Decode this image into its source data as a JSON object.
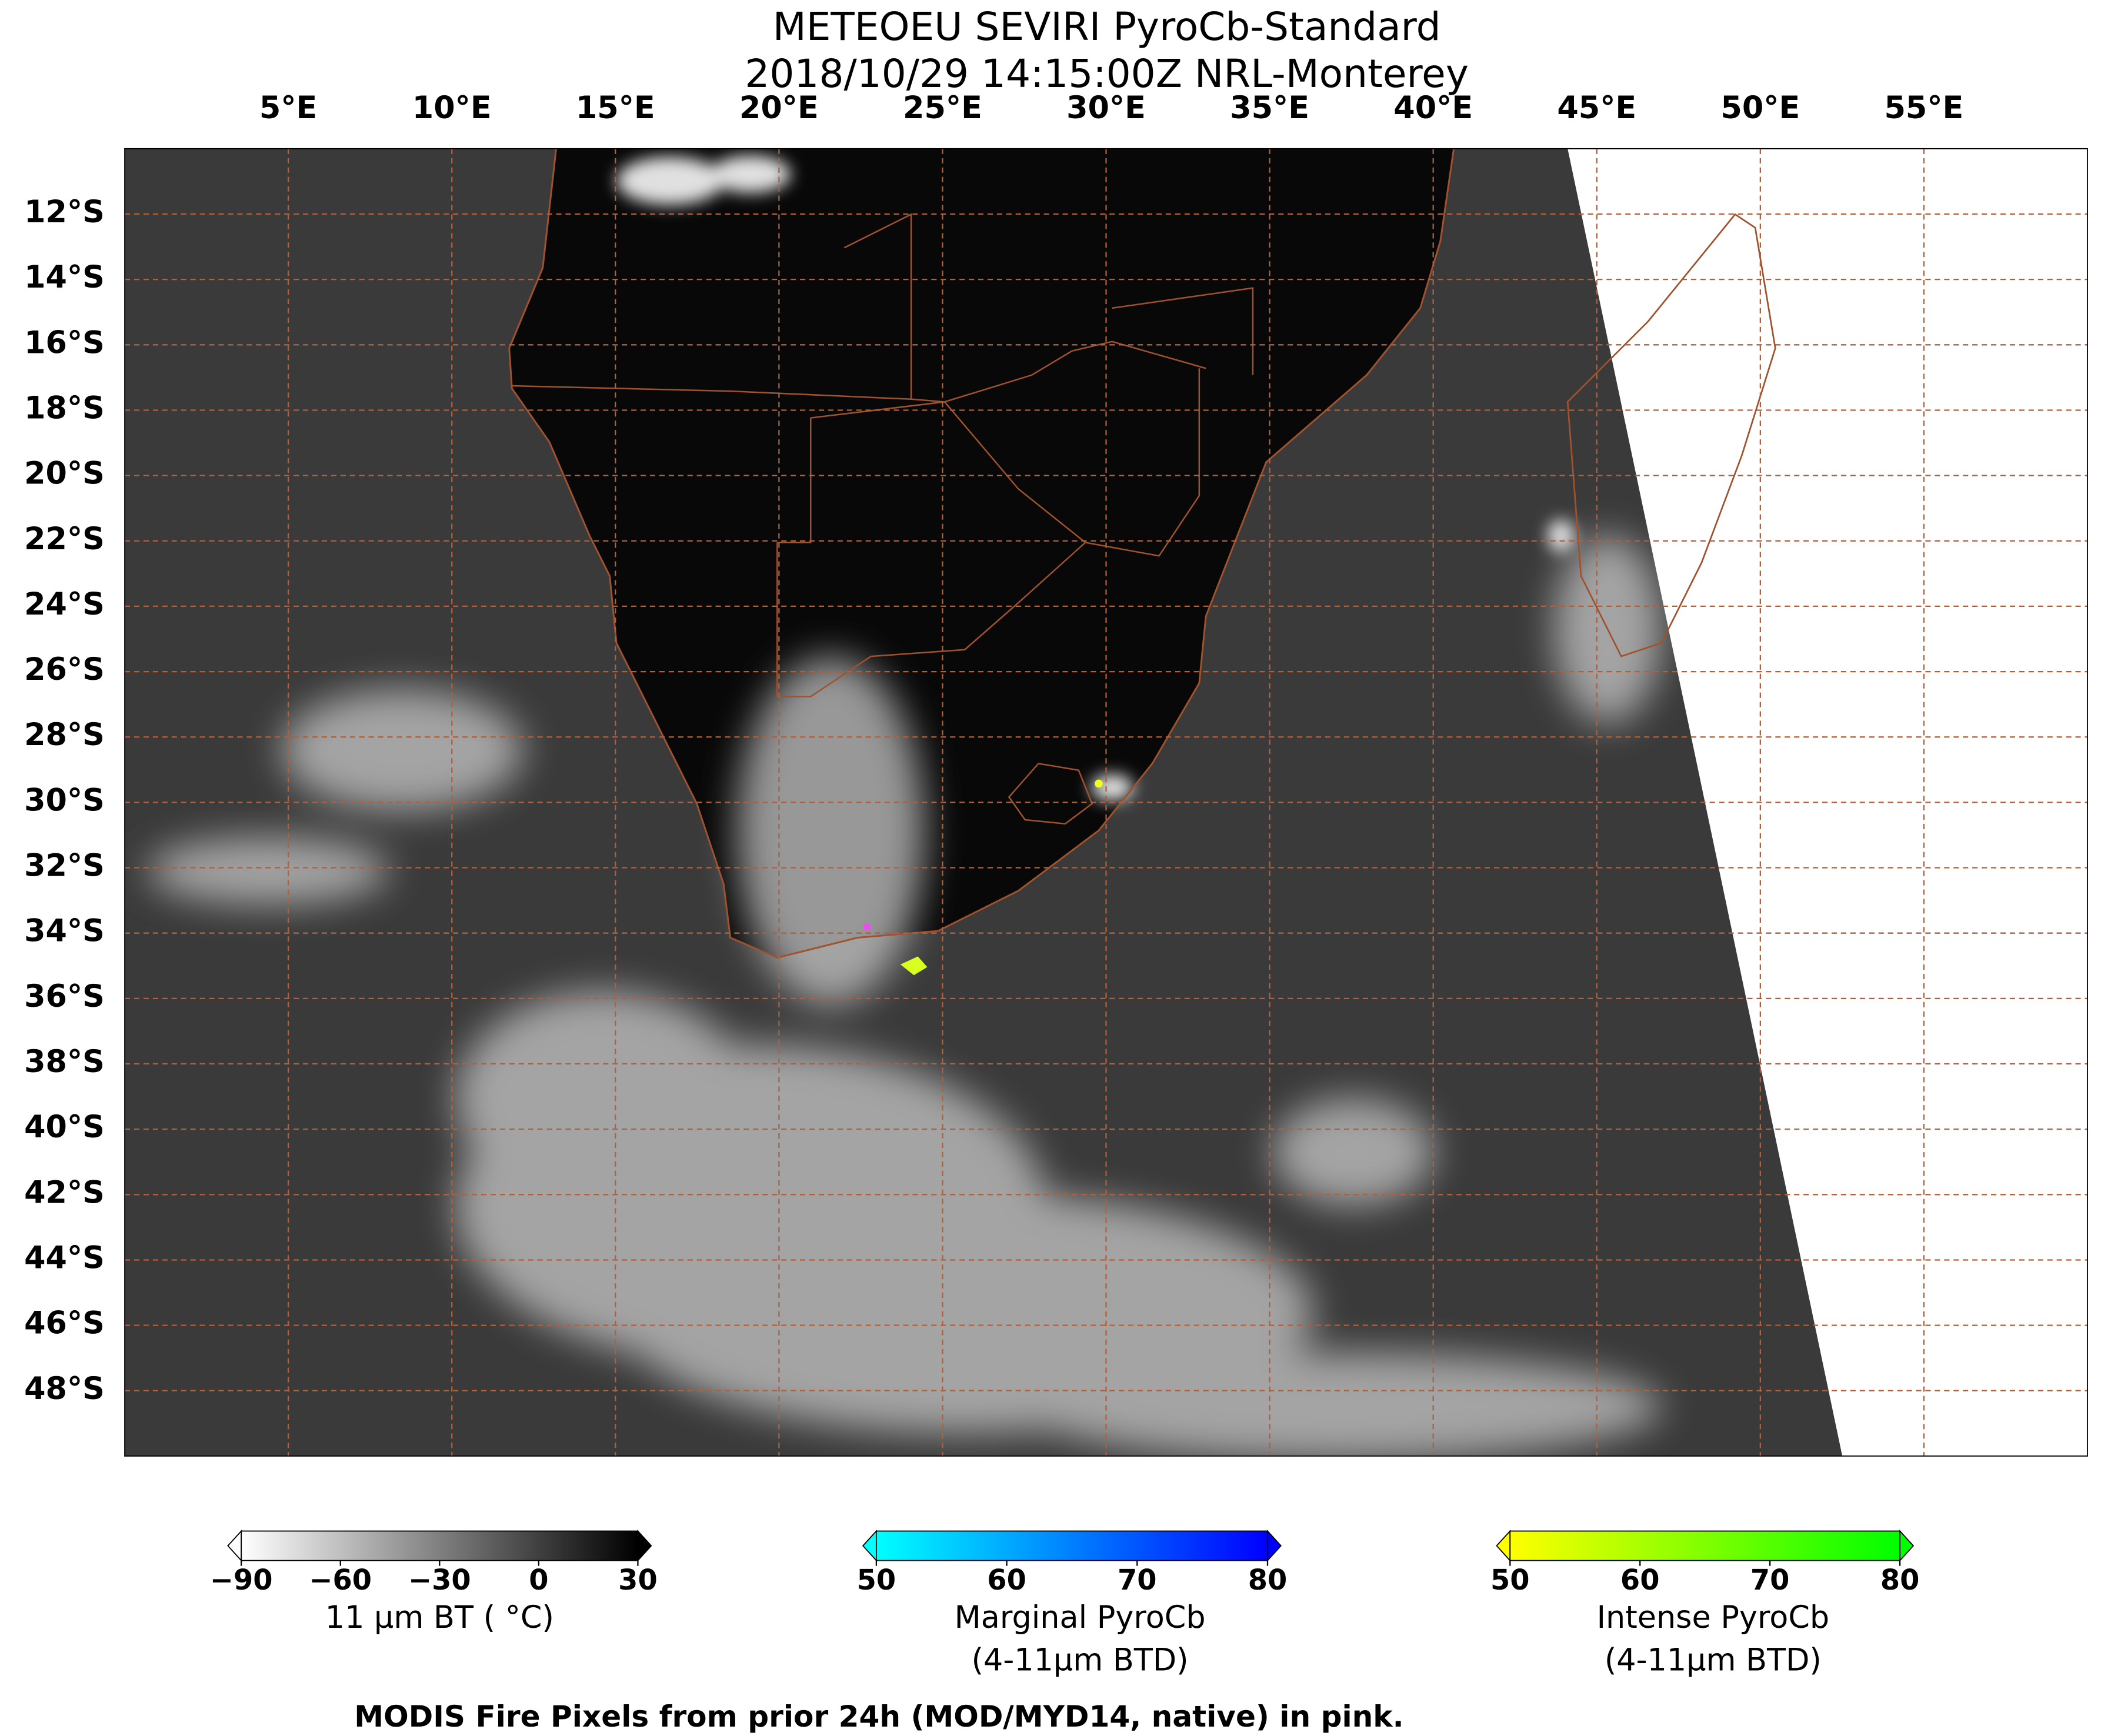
{
  "title": [
    "METEOEU SEVIRI PyroCb-Standard",
    "2018/10/29 14:15:00Z NRL-Monterey"
  ],
  "map": {
    "xlim": [
      0,
      60
    ],
    "ylim": [
      -10,
      -50
    ],
    "lon_ticks": [
      {
        "value": 5,
        "label": "5°E"
      },
      {
        "value": 10,
        "label": "10°E"
      },
      {
        "value": 15,
        "label": "15°E"
      },
      {
        "value": 20,
        "label": "20°E"
      },
      {
        "value": 25,
        "label": "25°E"
      },
      {
        "value": 30,
        "label": "30°E"
      },
      {
        "value": 35,
        "label": "35°E"
      },
      {
        "value": 40,
        "label": "40°E"
      },
      {
        "value": 45,
        "label": "45°E"
      },
      {
        "value": 50,
        "label": "50°E"
      },
      {
        "value": 55,
        "label": "55°E"
      }
    ],
    "lat_ticks": [
      {
        "value": -12,
        "label": "12°S"
      },
      {
        "value": -14,
        "label": "14°S"
      },
      {
        "value": -16,
        "label": "16°S"
      },
      {
        "value": -18,
        "label": "18°S"
      },
      {
        "value": -20,
        "label": "20°S"
      },
      {
        "value": -22,
        "label": "22°S"
      },
      {
        "value": -24,
        "label": "24°S"
      },
      {
        "value": -26,
        "label": "26°S"
      },
      {
        "value": -28,
        "label": "28°S"
      },
      {
        "value": -30,
        "label": "30°S"
      },
      {
        "value": -32,
        "label": "32°S"
      },
      {
        "value": -34,
        "label": "34°S"
      },
      {
        "value": -36,
        "label": "36°S"
      },
      {
        "value": -38,
        "label": "38°S"
      },
      {
        "value": -40,
        "label": "40°S"
      },
      {
        "value": -42,
        "label": "42°S"
      },
      {
        "value": -44,
        "label": "44°S"
      },
      {
        "value": -46,
        "label": "46°S"
      },
      {
        "value": -48,
        "label": "48°S"
      }
    ],
    "grid_color": "#b0603a"
  },
  "colorbars": [
    {
      "label": [
        "11 μm BT ( °C)"
      ],
      "clim": [
        -90,
        30
      ],
      "colors": [
        "#ffffff",
        "#000000"
      ],
      "ticks": [
        {
          "value": -90,
          "label": "−90"
        },
        {
          "value": -60,
          "label": "−60"
        },
        {
          "value": -30,
          "label": "−30"
        },
        0,
        30
      ]
    },
    {
      "label": [
        "Marginal PyroCb",
        "(4-11μm BTD)"
      ],
      "clim": [
        50,
        80
      ],
      "colors": [
        "#00ffff",
        "#0000ff"
      ],
      "ticks": [
        50,
        60,
        70,
        80
      ]
    },
    {
      "label": [
        "Intense PyroCb",
        "(4-11μm BTD)"
      ],
      "clim": [
        50,
        80
      ],
      "colors": [
        "#ffff00",
        "#00ff00"
      ],
      "ticks": [
        50,
        60,
        70,
        80
      ]
    }
  ],
  "footer": "MODIS Fire Pixels from prior 24h (MOD/MYD14, native) in pink."
}
